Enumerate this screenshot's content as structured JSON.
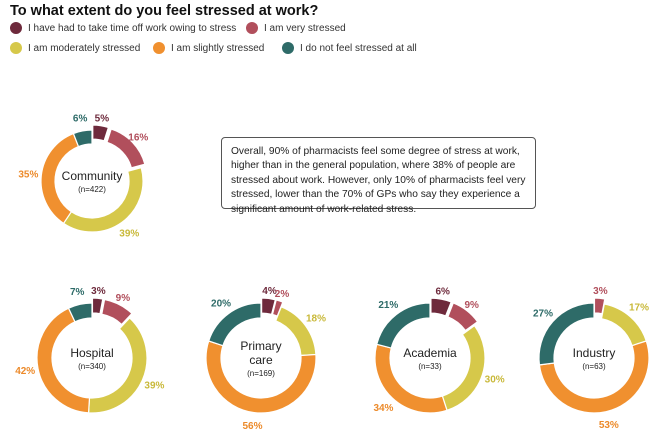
{
  "title": "To what extent do you feel stressed at work?",
  "legend": [
    {
      "label": "I have had to take time off work owing to stress",
      "color": "#6e2a3c"
    },
    {
      "label": "I am very stressed",
      "color": "#b14f5c"
    },
    {
      "label": "I am moderately stressed",
      "color": "#d6c84a"
    },
    {
      "label": "I am slightly stressed",
      "color": "#f0902f"
    },
    {
      "label": "I do not feel stressed at all",
      "color": "#2e6b68"
    }
  ],
  "note": "Overall, 90% of pharmacists feel some degree of stress at work, higher than in the general population, where 38% of people are stressed about work. However, only 10% of pharmacists feel very stressed, lower than the 70% of GPs who say they experience a significant amount of work-related stress.",
  "chart_data": [
    {
      "type": "pie",
      "title": "Community",
      "n_label": "(n=422)",
      "categories": [
        "I have had to take time off work owing to stress",
        "I am very stressed",
        "I am moderately stressed",
        "I am slightly stressed",
        "I do not feel stressed at all"
      ],
      "values": [
        5,
        16,
        39,
        35,
        6
      ]
    },
    {
      "type": "pie",
      "title": "Hospital",
      "n_label": "(n=340)",
      "categories": [
        "I have had to take time off work owing to stress",
        "I am very stressed",
        "I am moderately stressed",
        "I am slightly stressed",
        "I do not feel stressed at all"
      ],
      "values": [
        3,
        9,
        39,
        42,
        7
      ]
    },
    {
      "type": "pie",
      "title": "Primary care",
      "n_label": "(n=169)",
      "categories": [
        "I have had to take time off work owing to stress",
        "I am very stressed",
        "I am moderately stressed",
        "I am slightly stressed",
        "I do not feel stressed at all"
      ],
      "values": [
        4,
        2,
        18,
        56,
        20
      ]
    },
    {
      "type": "pie",
      "title": "Academia",
      "n_label": "(n=33)",
      "categories": [
        "I have had to take time off work owing to stress",
        "I am very stressed",
        "I am moderately stressed",
        "I am slightly stressed",
        "I do not feel stressed at all"
      ],
      "values": [
        6,
        9,
        30,
        34,
        21
      ]
    },
    {
      "type": "pie",
      "title": "Industry",
      "n_label": "(n=63)",
      "categories": [
        "I have had to take time off work owing to stress",
        "I am very stressed",
        "I am moderately stressed",
        "I am slightly stressed",
        "I do not feel stressed at all"
      ],
      "values": [
        0,
        3,
        17,
        53,
        27
      ]
    }
  ]
}
